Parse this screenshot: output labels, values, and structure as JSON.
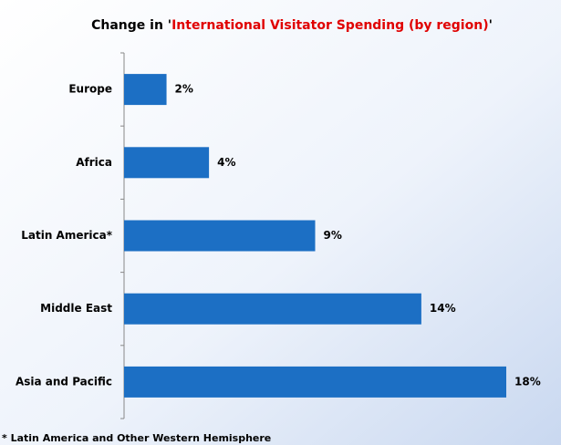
{
  "chart_data": {
    "type": "hbar",
    "title_parts": [
      "Change in '",
      "International Visitator Spending (by region)",
      "'"
    ],
    "title_colors": [
      "#000000",
      "#e00000",
      "#000000"
    ],
    "categories": [
      "Europe",
      "Africa",
      "Latin America*",
      "Middle East",
      "Asia and Pacific"
    ],
    "values": [
      2,
      4,
      9,
      14,
      18
    ],
    "value_labels": [
      "2%",
      "4%",
      "9%",
      "14%",
      "18%"
    ],
    "color": "#1c6fc4",
    "xlim": [
      0,
      18
    ],
    "footnote": "* Latin America and Other Western Hemisphere"
  }
}
